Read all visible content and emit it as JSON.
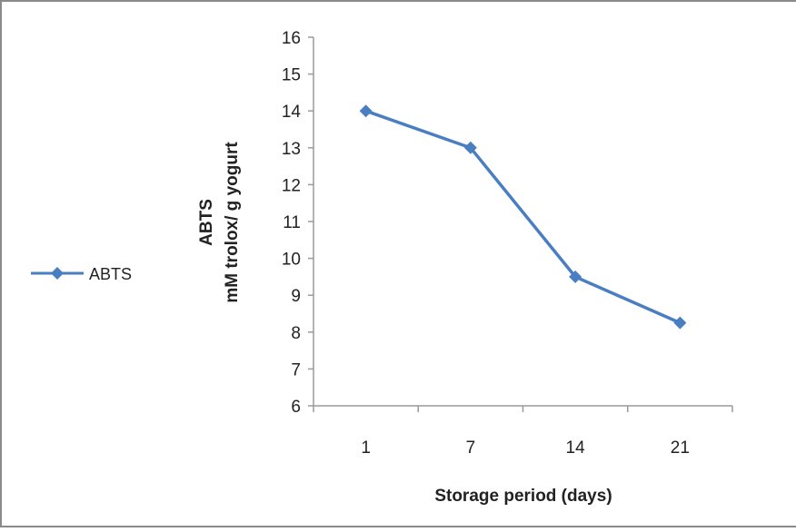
{
  "chart_data": {
    "type": "line",
    "x": [
      "1",
      "7",
      "14",
      "21"
    ],
    "series": [
      {
        "name": "ABTS",
        "values": [
          14.0,
          13.0,
          9.5,
          8.25
        ],
        "color": "#4a7ec2",
        "marker": "diamond"
      }
    ],
    "xlabel": "Storage period (days)",
    "ylabel_line1": "ABTS",
    "ylabel_line2": "mM trolox/ g yogurt",
    "ylim": [
      6,
      16
    ],
    "yticks": [
      6,
      7,
      8,
      9,
      10,
      11,
      12,
      13,
      14,
      15,
      16
    ],
    "grid": false,
    "legend_position": "left",
    "axis_color": "#9a9a9a"
  }
}
